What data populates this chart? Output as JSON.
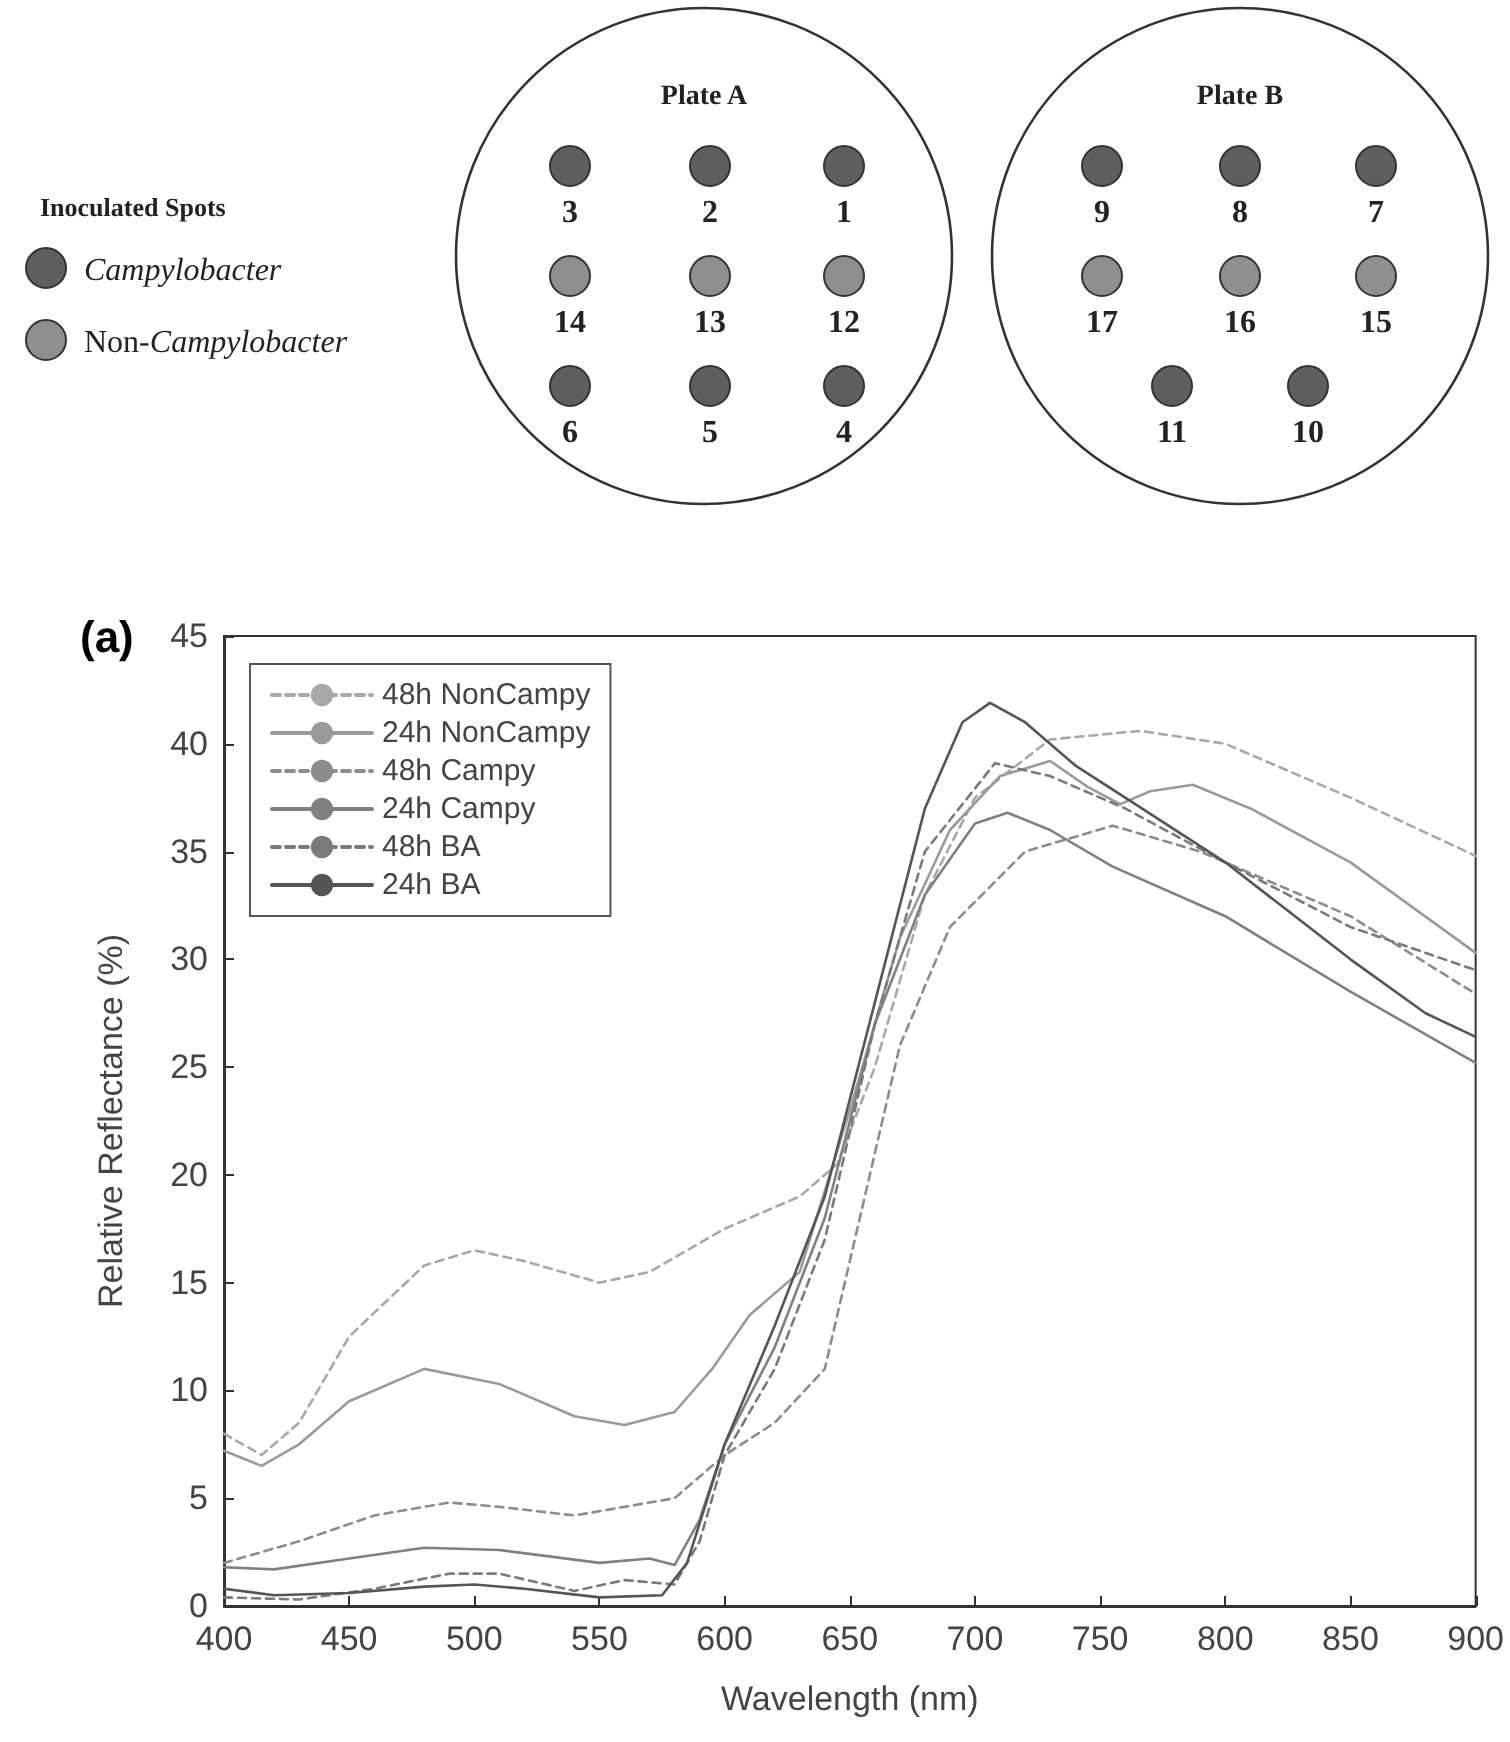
{
  "chart_data": {
    "type": "line",
    "xlabel": "Wavelength (nm)",
    "ylabel": "Relative Reflectance (%)",
    "xlim": [
      400,
      900
    ],
    "xticks": [
      400,
      450,
      500,
      550,
      600,
      650,
      700,
      750,
      800,
      850,
      900
    ],
    "ylim": [
      0,
      45
    ],
    "yticks": [
      0,
      5,
      10,
      15,
      20,
      25,
      30,
      35,
      40,
      45
    ],
    "grid": false,
    "legend": "top left",
    "marker": "none",
    "annotations": [
      "(a)",
      "Inoculated Spots",
      "Campylobacter",
      "Non-Campylobacter",
      "Plate A",
      "3",
      "2",
      "1",
      "14",
      "13",
      "12",
      "6",
      "5",
      "4",
      "Plate B",
      "9",
      "8",
      "7",
      "17",
      "16",
      "15",
      "11",
      "10"
    ],
    "series": [
      {
        "name": "48h NonCampy",
        "color": "#a8a8a8",
        "line_style": "dashed",
        "x": [
          400,
          415,
          430,
          450,
          480,
          500,
          520,
          550,
          570,
          600,
          630,
          645,
          660,
          680,
          700,
          730,
          766,
          800,
          850,
          900
        ],
        "values": [
          8,
          7,
          8.5,
          12.5,
          15.8,
          16.5,
          16,
          15,
          15.5,
          17.5,
          19,
          20.5,
          25,
          33,
          37.5,
          40.2,
          40.6,
          40,
          37.5,
          34.8
        ]
      },
      {
        "name": "24h NonCampy",
        "color": "#9a9a9a",
        "line_style": "solid",
        "x": [
          400,
          415,
          430,
          450,
          480,
          510,
          540,
          560,
          580,
          595,
          610,
          630,
          650,
          670,
          690,
          710,
          730,
          745,
          758,
          770,
          787,
          810,
          850,
          900
        ],
        "values": [
          7.2,
          6.5,
          7.5,
          9.5,
          11,
          10.3,
          8.8,
          8.4,
          9,
          11,
          13.5,
          15.5,
          23,
          31,
          36,
          38.5,
          39.2,
          38,
          37.2,
          37.8,
          38.1,
          37,
          34.5,
          30.3
        ]
      },
      {
        "name": "48h Campy",
        "color": "#8c8c8c",
        "line_style": "dashed",
        "x": [
          400,
          430,
          460,
          490,
          510,
          540,
          560,
          580,
          600,
          620,
          640,
          650,
          670,
          690,
          720,
          755,
          790,
          850,
          900
        ],
        "values": [
          2,
          3,
          4.2,
          4.8,
          4.6,
          4.2,
          4.6,
          5,
          7,
          8.5,
          11,
          16,
          26,
          31.5,
          35,
          36.2,
          35,
          32,
          28.4
        ]
      },
      {
        "name": "24h Campy",
        "color": "#808080",
        "line_style": "solid",
        "x": [
          400,
          420,
          450,
          480,
          510,
          550,
          570,
          580,
          590,
          600,
          620,
          640,
          660,
          680,
          700,
          713,
          730,
          755,
          800,
          850,
          900
        ],
        "values": [
          1.8,
          1.7,
          2.2,
          2.7,
          2.6,
          2,
          2.2,
          1.9,
          4,
          7.5,
          12,
          18,
          27,
          33,
          36.3,
          36.8,
          36,
          34.3,
          32,
          28.5,
          25.2
        ]
      },
      {
        "name": "48h BA",
        "color": "#7a7a7a",
        "line_style": "dashed",
        "x": [
          400,
          430,
          460,
          490,
          510,
          540,
          560,
          580,
          590,
          600,
          620,
          640,
          660,
          680,
          708,
          730,
          760,
          800,
          850,
          900
        ],
        "values": [
          0.4,
          0.3,
          0.8,
          1.5,
          1.5,
          0.7,
          1.2,
          1,
          3,
          7,
          11,
          17,
          27,
          35,
          39.1,
          38.5,
          37,
          34.5,
          31.5,
          29.5
        ]
      },
      {
        "name": "24h BA",
        "color": "#555555",
        "line_style": "solid",
        "x": [
          400,
          420,
          450,
          480,
          500,
          520,
          550,
          575,
          585,
          600,
          620,
          640,
          660,
          680,
          695,
          706,
          720,
          740,
          760,
          800,
          850,
          880,
          900
        ],
        "values": [
          0.8,
          0.5,
          0.6,
          0.9,
          1,
          0.8,
          0.4,
          0.5,
          2,
          7.5,
          13,
          19,
          28,
          37,
          41,
          41.9,
          41,
          39,
          37.5,
          34.5,
          30,
          27.5,
          26.4
        ]
      }
    ]
  }
}
